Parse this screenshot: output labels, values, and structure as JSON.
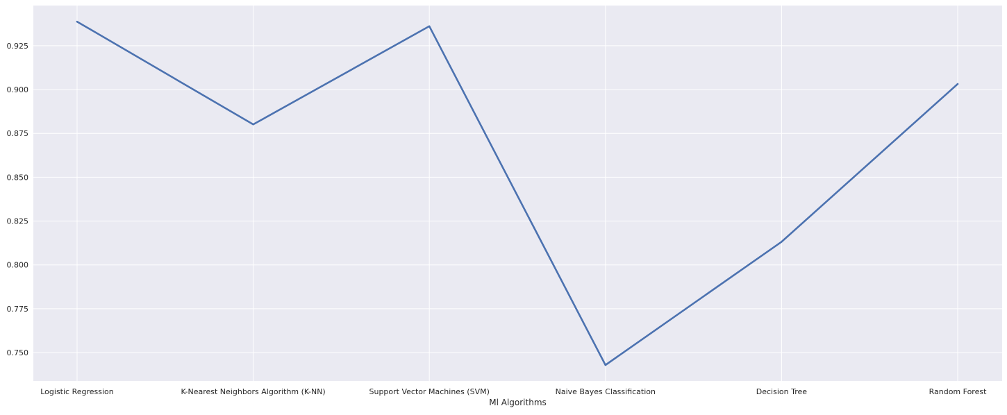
{
  "colors": {
    "plot_background": "#eaeaf2",
    "grid": "#ffffff",
    "line": "#4c72b0",
    "text": "#262626"
  },
  "chart_data": {
    "type": "line",
    "title": "",
    "xlabel": "Ml Algorithms",
    "ylabel": "",
    "categories": [
      "Logistic Regression",
      "K-Nearest Neighbors Algorithm (K-NN)",
      "Support Vector Machines (SVM)",
      "Naive Bayes Classification",
      "Decision Tree",
      "Random Forest"
    ],
    "series": [
      {
        "values": [
          0.9387,
          0.8801,
          0.9361,
          0.7429,
          0.8132,
          0.9032
        ]
      }
    ],
    "yticks": [
      0.75,
      0.775,
      0.8,
      0.825,
      0.85,
      0.875,
      0.9,
      0.925
    ],
    "ytick_labels": [
      "0.750",
      "0.775",
      "0.800",
      "0.825",
      "0.850",
      "0.875",
      "0.900",
      "0.925"
    ],
    "ylim": [
      0.7338,
      0.9479
    ],
    "grid": true,
    "legend": "none"
  }
}
